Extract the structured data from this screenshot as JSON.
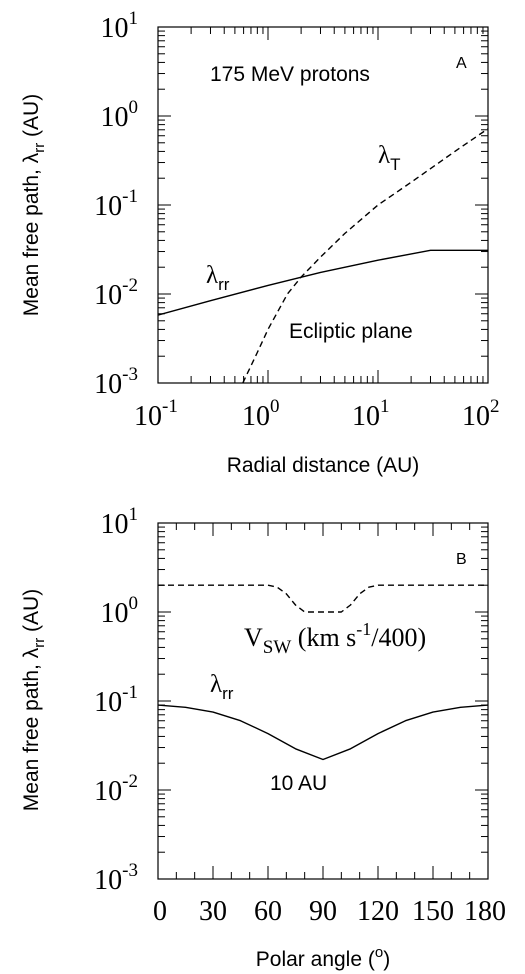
{
  "chart_data": [
    {
      "panel": "A",
      "type": "line",
      "x_scale": "log",
      "y_scale": "log",
      "xlim": [
        0.1,
        100
      ],
      "ylim": [
        0.001,
        10
      ],
      "xlabel": "Radial distance (AU)",
      "ylabel_main": "Mean free path, λ",
      "ylabel_sub": "rr",
      "ylabel_tail": " (AU)",
      "x_ticks": [
        {
          "value": 0.1,
          "base": "10",
          "exp": "-1"
        },
        {
          "value": 1,
          "base": "10",
          "exp": "0"
        },
        {
          "value": 10,
          "base": "10",
          "exp": "1"
        },
        {
          "value": 100,
          "base": "10",
          "exp": "2"
        }
      ],
      "y_ticks": [
        {
          "value": 0.001,
          "base": "10",
          "exp": "-3"
        },
        {
          "value": 0.01,
          "base": "10",
          "exp": "-2"
        },
        {
          "value": 0.1,
          "base": "10",
          "exp": "-1"
        },
        {
          "value": 1,
          "base": "10",
          "exp": "0"
        },
        {
          "value": 10,
          "base": "10",
          "exp": "1"
        }
      ],
      "panel_letter": "A",
      "annotation_title": "175 MeV protons",
      "annotation_region": "Ecliptic plane",
      "series": [
        {
          "label_main": "λ",
          "label_sub": "rr",
          "style": "solid",
          "x": [
            0.1,
            0.3,
            1,
            3,
            10,
            30,
            100
          ],
          "y": [
            0.0058,
            0.0084,
            0.0125,
            0.0175,
            0.024,
            0.031,
            0.031
          ]
        },
        {
          "label_main": "λ",
          "label_sub": "T",
          "style": "dashed",
          "x": [
            0.59,
            0.8,
            1,
            1.5,
            2,
            3,
            5,
            10,
            20,
            50,
            100
          ],
          "y": [
            0.001,
            0.0022,
            0.004,
            0.01,
            0.0155,
            0.026,
            0.048,
            0.1,
            0.18,
            0.4,
            0.72
          ]
        }
      ]
    },
    {
      "panel": "B",
      "type": "line",
      "x_scale": "linear",
      "y_scale": "log",
      "xlim": [
        0,
        180
      ],
      "ylim": [
        0.001,
        10
      ],
      "xlabel_main": "Polar angle (",
      "xlabel_sup": "o",
      "xlabel_tail": ")",
      "ylabel_main": "Mean free path, λ",
      "ylabel_sub": "rr",
      "ylabel_tail": " (AU)",
      "x_ticks": [
        "0",
        "30",
        "60",
        "90",
        "120",
        "150",
        "180"
      ],
      "y_ticks": [
        {
          "value": 0.001,
          "base": "10",
          "exp": "-3"
        },
        {
          "value": 0.01,
          "base": "10",
          "exp": "-2"
        },
        {
          "value": 0.1,
          "base": "10",
          "exp": "-1"
        },
        {
          "value": 1,
          "base": "10",
          "exp": "0"
        },
        {
          "value": 10,
          "base": "10",
          "exp": "1"
        }
      ],
      "panel_letter": "B",
      "annotation_distance": "10 AU",
      "series": [
        {
          "label_main": "λ",
          "label_sub": "rr",
          "style": "solid",
          "x": [
            0,
            15,
            30,
            45,
            60,
            75,
            90,
            105,
            120,
            135,
            150,
            165,
            180
          ],
          "y": [
            0.09,
            0.085,
            0.075,
            0.06,
            0.043,
            0.029,
            0.022,
            0.029,
            0.043,
            0.06,
            0.075,
            0.085,
            0.09
          ]
        },
        {
          "label_main": "V",
          "label_sub": "SW",
          "label_tail_a": " (km s",
          "label_sup": "-1",
          "label_tail_b": "/400)",
          "style": "dashed",
          "x": [
            0,
            60,
            65,
            70,
            75,
            80,
            100,
            105,
            110,
            115,
            120,
            180
          ],
          "y": [
            2,
            2,
            1.9,
            1.6,
            1.2,
            1.0,
            1.0,
            1.2,
            1.6,
            1.9,
            2,
            2
          ]
        }
      ]
    }
  ]
}
